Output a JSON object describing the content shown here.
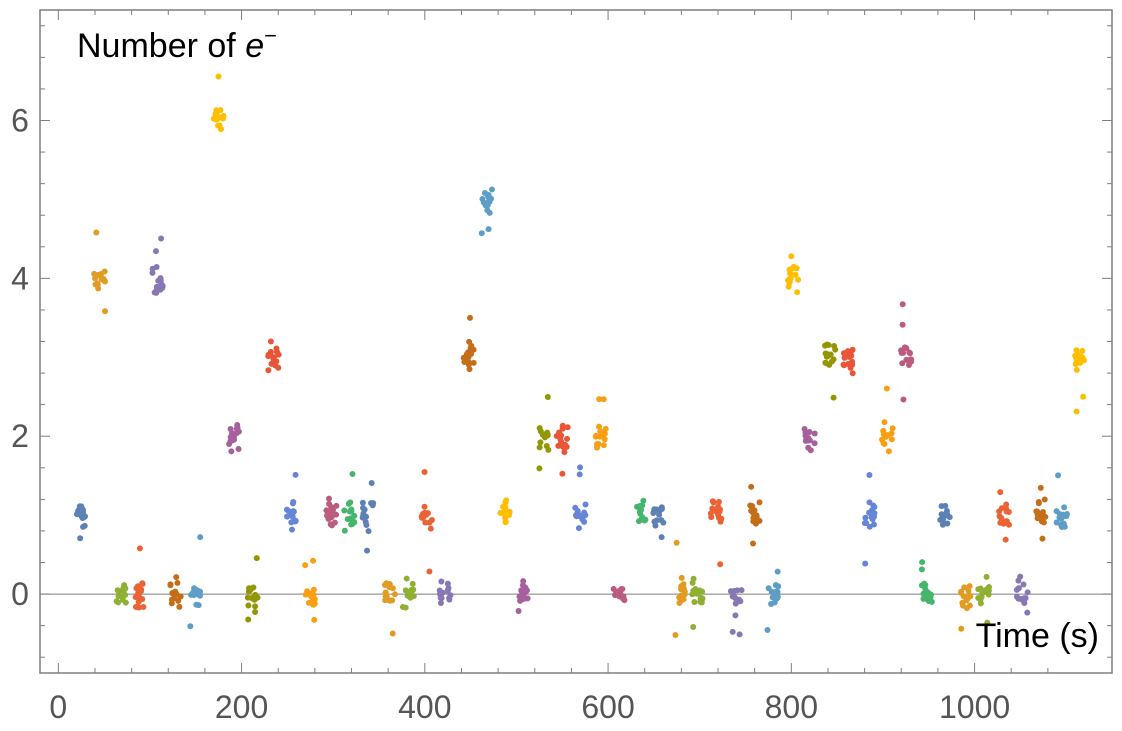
{
  "chart_data": {
    "type": "scatter",
    "title": "",
    "xlabel": "Time (s)",
    "ylabel_parts": {
      "prefix": "Number of ",
      "symbol": "e",
      "superscript": "−"
    },
    "xlim": [
      -20,
      1150
    ],
    "ylim": [
      -1,
      7.4
    ],
    "xticks": [
      0,
      200,
      400,
      600,
      800,
      1000
    ],
    "yticks": [
      0,
      2,
      4,
      6
    ],
    "xtick_labels": [
      "0",
      "200",
      "400",
      "600",
      "800",
      "1000"
    ],
    "ytick_labels": [
      "0",
      "2",
      "4",
      "6"
    ],
    "grid": false,
    "zero_line": true,
    "legend": "none",
    "clusters": [
      {
        "t": 25,
        "n": 1,
        "color": "#5e81b5"
      },
      {
        "t": 45,
        "n": 4,
        "color": "#e19c24"
      },
      {
        "t": 68,
        "n": 0,
        "color": "#8fb032"
      },
      {
        "t": 88,
        "n": 0,
        "color": "#eb6235"
      },
      {
        "t": 108,
        "n": 4,
        "color": "#8778b3"
      },
      {
        "t": 128,
        "n": 0,
        "color": "#c56e1a"
      },
      {
        "t": 150,
        "n": 0,
        "color": "#5d9ec7"
      },
      {
        "t": 175,
        "n": 6,
        "color": "#ffbf00"
      },
      {
        "t": 192,
        "n": 2,
        "color": "#a5609d"
      },
      {
        "t": 212,
        "n": 0,
        "color": "#929600"
      },
      {
        "t": 235,
        "n": 3,
        "color": "#e95536"
      },
      {
        "t": 255,
        "n": 1,
        "color": "#6685d9"
      },
      {
        "t": 275,
        "n": 0,
        "color": "#f89f13"
      },
      {
        "t": 298,
        "n": 1,
        "color": "#bc5b80"
      },
      {
        "t": 318,
        "n": 1,
        "color": "#47b66d"
      },
      {
        "t": 338,
        "n": 1,
        "color": "#5e81b5"
      },
      {
        "t": 362,
        "n": 0,
        "color": "#e19c24"
      },
      {
        "t": 382,
        "n": 0,
        "color": "#8fb032"
      },
      {
        "t": 402,
        "n": 1,
        "color": "#eb6235"
      },
      {
        "t": 422,
        "n": 0,
        "color": "#8778b3"
      },
      {
        "t": 448,
        "n": 3,
        "color": "#c56e1a"
      },
      {
        "t": 468,
        "n": 5,
        "color": "#5d9ec7"
      },
      {
        "t": 488,
        "n": 1,
        "color": "#ffbf00"
      },
      {
        "t": 508,
        "n": 0,
        "color": "#a5609d"
      },
      {
        "t": 530,
        "n": 2,
        "color": "#929600"
      },
      {
        "t": 550,
        "n": 2,
        "color": "#e95536"
      },
      {
        "t": 570,
        "n": 1,
        "color": "#6685d9"
      },
      {
        "t": 592,
        "n": 2,
        "color": "#f89f13"
      },
      {
        "t": 612,
        "n": 0,
        "color": "#bc5b80"
      },
      {
        "t": 635,
        "n": 1,
        "color": "#47b66d"
      },
      {
        "t": 655,
        "n": 1,
        "color": "#5e81b5"
      },
      {
        "t": 678,
        "n": 0,
        "color": "#e19c24"
      },
      {
        "t": 698,
        "n": 0,
        "color": "#8fb032"
      },
      {
        "t": 718,
        "n": 1,
        "color": "#eb6235"
      },
      {
        "t": 740,
        "n": 0,
        "color": "#8778b3"
      },
      {
        "t": 760,
        "n": 1,
        "color": "#c56e1a"
      },
      {
        "t": 780,
        "n": 0,
        "color": "#5d9ec7"
      },
      {
        "t": 802,
        "n": 4,
        "color": "#ffbf00"
      },
      {
        "t": 820,
        "n": 2,
        "color": "#a5609d"
      },
      {
        "t": 842,
        "n": 3,
        "color": "#929600"
      },
      {
        "t": 862,
        "n": 3,
        "color": "#e95536"
      },
      {
        "t": 885,
        "n": 1,
        "color": "#6685d9"
      },
      {
        "t": 905,
        "n": 2,
        "color": "#f89f13"
      },
      {
        "t": 925,
        "n": 3,
        "color": "#bc5b80"
      },
      {
        "t": 948,
        "n": 0,
        "color": "#47b66d"
      },
      {
        "t": 968,
        "n": 1,
        "color": "#5e81b5"
      },
      {
        "t": 990,
        "n": 0,
        "color": "#e19c24"
      },
      {
        "t": 1010,
        "n": 0,
        "color": "#8fb032"
      },
      {
        "t": 1032,
        "n": 1,
        "color": "#eb6235"
      },
      {
        "t": 1052,
        "n": 0,
        "color": "#8778b3"
      },
      {
        "t": 1072,
        "n": 1,
        "color": "#c56e1a"
      },
      {
        "t": 1095,
        "n": 1,
        "color": "#5d9ec7"
      },
      {
        "t": 1115,
        "n": 3,
        "color": "#ffbf00"
      }
    ]
  }
}
